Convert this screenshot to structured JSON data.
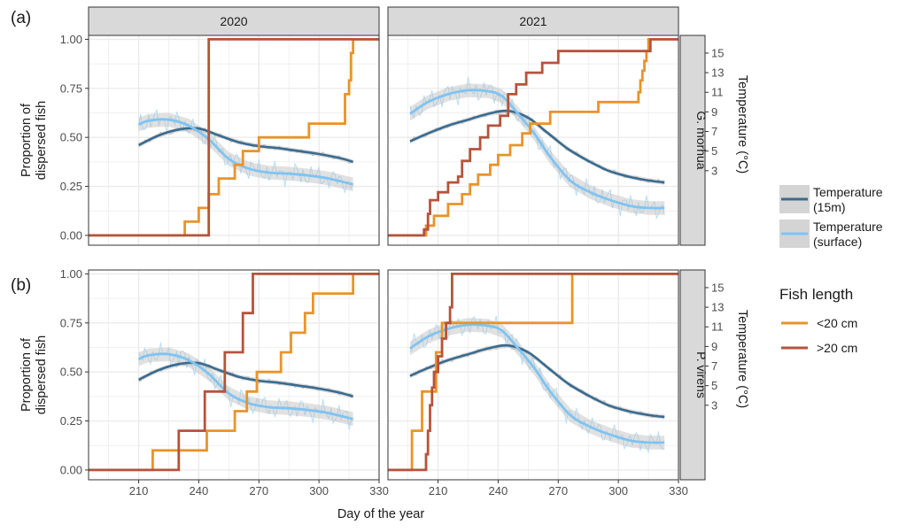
{
  "figure": {
    "panel_letters": [
      "(a)",
      "(b)"
    ],
    "column_strips": [
      "2020",
      "2021"
    ],
    "row_strips": [
      "G. morhua",
      "P. virens"
    ],
    "left_axis_label_line1": "Proportion of",
    "left_axis_label_line2": "dispersed fish",
    "right_axis_label": "Temperature (°C)",
    "x_axis_label": "Day of the year"
  },
  "colors": {
    "lt20": "#E8942A",
    "gt20": "#B5533C",
    "temp15m": "#3A6B8F",
    "tempSurface": "#7EC4F2",
    "tempSurfaceRaw": "#B9E1FA",
    "ribbon": "#BDBDBD",
    "strip": "#D9D9D9",
    "grid": "#EBEBEB"
  },
  "legend": {
    "temperature": [
      {
        "key": "temp15m",
        "line1": "Temperature",
        "line2": "(15m)"
      },
      {
        "key": "tempSurface",
        "line1": "Temperature",
        "line2": "(surface)"
      }
    ],
    "fish_title": "Fish length",
    "fish": [
      {
        "key": "lt20",
        "label": "<20 cm"
      },
      {
        "key": "gt20",
        "label": ">20 cm"
      }
    ]
  },
  "chart_data": {
    "type": "line",
    "x_ticks": [
      210,
      240,
      270,
      300,
      330
    ],
    "y_ticks": [
      0.0,
      0.25,
      0.5,
      0.75,
      1.0
    ],
    "y_tick_labels": [
      "0.00",
      "0.25",
      "0.50",
      "0.75",
      "1.00"
    ],
    "temp_ticks": [
      3,
      5,
      7,
      9,
      11,
      13,
      15
    ],
    "xlim": [
      185,
      330
    ],
    "ylim": [
      -0.05,
      1.02
    ],
    "temp_axis_map": {
      "zero_at": 0.18,
      "per_degree": 0.05
    },
    "panels": [
      {
        "row": 0,
        "col": 0,
        "temp15m": [
          [
            210,
            0.46
          ],
          [
            220,
            0.51
          ],
          [
            230,
            0.54
          ],
          [
            240,
            0.545
          ],
          [
            250,
            0.51
          ],
          [
            260,
            0.475
          ],
          [
            270,
            0.455
          ],
          [
            280,
            0.445
          ],
          [
            290,
            0.43
          ],
          [
            300,
            0.415
          ],
          [
            310,
            0.395
          ],
          [
            317,
            0.375
          ]
        ],
        "tempSurface": [
          [
            210,
            0.565
          ],
          [
            215,
            0.585
          ],
          [
            225,
            0.59
          ],
          [
            235,
            0.56
          ],
          [
            245,
            0.49
          ],
          [
            255,
            0.39
          ],
          [
            265,
            0.34
          ],
          [
            275,
            0.32
          ],
          [
            285,
            0.315
          ],
          [
            295,
            0.305
          ],
          [
            305,
            0.29
          ],
          [
            317,
            0.26
          ]
        ],
        "lt20": [
          [
            185,
            0
          ],
          [
            233,
            0
          ],
          [
            233,
            0.07
          ],
          [
            240,
            0.07
          ],
          [
            240,
            0.14
          ],
          [
            245,
            0.14
          ],
          [
            245,
            0.21
          ],
          [
            250,
            0.21
          ],
          [
            250,
            0.29
          ],
          [
            258,
            0.29
          ],
          [
            258,
            0.36
          ],
          [
            262,
            0.36
          ],
          [
            262,
            0.43
          ],
          [
            270,
            0.43
          ],
          [
            270,
            0.5
          ],
          [
            295,
            0.5
          ],
          [
            295,
            0.57
          ],
          [
            313,
            0.57
          ],
          [
            313,
            0.72
          ],
          [
            315,
            0.72
          ],
          [
            315,
            0.79
          ],
          [
            316,
            0.79
          ],
          [
            316,
            0.93
          ],
          [
            317,
            0.93
          ],
          [
            317,
            1.0
          ],
          [
            330,
            1.0
          ]
        ],
        "gt20": [
          [
            185,
            0
          ],
          [
            245,
            0
          ],
          [
            245,
            1.0
          ],
          [
            330,
            1.0
          ]
        ]
      },
      {
        "row": 0,
        "col": 1,
        "temp15m": [
          [
            196,
            0.48
          ],
          [
            205,
            0.52
          ],
          [
            215,
            0.56
          ],
          [
            225,
            0.59
          ],
          [
            235,
            0.62
          ],
          [
            245,
            0.635
          ],
          [
            255,
            0.6
          ],
          [
            265,
            0.52
          ],
          [
            275,
            0.44
          ],
          [
            285,
            0.38
          ],
          [
            295,
            0.33
          ],
          [
            305,
            0.3
          ],
          [
            315,
            0.28
          ],
          [
            323,
            0.27
          ]
        ],
        "tempSurface": [
          [
            196,
            0.62
          ],
          [
            205,
            0.68
          ],
          [
            215,
            0.72
          ],
          [
            225,
            0.74
          ],
          [
            235,
            0.735
          ],
          [
            242,
            0.71
          ],
          [
            250,
            0.62
          ],
          [
            258,
            0.52
          ],
          [
            266,
            0.4
          ],
          [
            276,
            0.28
          ],
          [
            286,
            0.22
          ],
          [
            296,
            0.18
          ],
          [
            306,
            0.15
          ],
          [
            315,
            0.14
          ],
          [
            323,
            0.14
          ]
        ],
        "lt20": [
          [
            185,
            0
          ],
          [
            204,
            0
          ],
          [
            204,
            0.05
          ],
          [
            208,
            0.05
          ],
          [
            208,
            0.1
          ],
          [
            215,
            0.1
          ],
          [
            215,
            0.16
          ],
          [
            222,
            0.16
          ],
          [
            222,
            0.21
          ],
          [
            226,
            0.21
          ],
          [
            226,
            0.26
          ],
          [
            230,
            0.26
          ],
          [
            230,
            0.31
          ],
          [
            236,
            0.31
          ],
          [
            236,
            0.36
          ],
          [
            240,
            0.36
          ],
          [
            240,
            0.41
          ],
          [
            246,
            0.41
          ],
          [
            246,
            0.46
          ],
          [
            252,
            0.46
          ],
          [
            252,
            0.52
          ],
          [
            256,
            0.52
          ],
          [
            256,
            0.57
          ],
          [
            266,
            0.57
          ],
          [
            266,
            0.63
          ],
          [
            290,
            0.63
          ],
          [
            290,
            0.68
          ],
          [
            310,
            0.68
          ],
          [
            310,
            0.73
          ],
          [
            311,
            0.73
          ],
          [
            311,
            0.79
          ],
          [
            312,
            0.79
          ],
          [
            312,
            0.84
          ],
          [
            313,
            0.84
          ],
          [
            313,
            0.89
          ],
          [
            314,
            0.89
          ],
          [
            314,
            0.94
          ],
          [
            315,
            0.94
          ],
          [
            315,
            1.0
          ],
          [
            330,
            1.0
          ]
        ],
        "gt20": [
          [
            185,
            0
          ],
          [
            203,
            0
          ],
          [
            203,
            0.03
          ],
          [
            205,
            0.03
          ],
          [
            205,
            0.11
          ],
          [
            206,
            0.11
          ],
          [
            206,
            0.18
          ],
          [
            210,
            0.18
          ],
          [
            210,
            0.22
          ],
          [
            215,
            0.22
          ],
          [
            215,
            0.27
          ],
          [
            220,
            0.27
          ],
          [
            220,
            0.3
          ],
          [
            222,
            0.3
          ],
          [
            222,
            0.38
          ],
          [
            226,
            0.38
          ],
          [
            226,
            0.44
          ],
          [
            231,
            0.44
          ],
          [
            231,
            0.5
          ],
          [
            235,
            0.5
          ],
          [
            235,
            0.56
          ],
          [
            241,
            0.56
          ],
          [
            241,
            0.61
          ],
          [
            245,
            0.61
          ],
          [
            245,
            0.72
          ],
          [
            249,
            0.72
          ],
          [
            249,
            0.77
          ],
          [
            254,
            0.77
          ],
          [
            254,
            0.83
          ],
          [
            262,
            0.83
          ],
          [
            262,
            0.88
          ],
          [
            270,
            0.88
          ],
          [
            270,
            0.94
          ],
          [
            316,
            0.94
          ],
          [
            316,
            1.0
          ],
          [
            330,
            1.0
          ]
        ]
      },
      {
        "row": 1,
        "col": 0,
        "temp15m": [
          [
            210,
            0.46
          ],
          [
            220,
            0.51
          ],
          [
            230,
            0.54
          ],
          [
            240,
            0.545
          ],
          [
            250,
            0.51
          ],
          [
            260,
            0.475
          ],
          [
            270,
            0.455
          ],
          [
            280,
            0.445
          ],
          [
            290,
            0.43
          ],
          [
            300,
            0.415
          ],
          [
            310,
            0.395
          ],
          [
            317,
            0.375
          ]
        ],
        "tempSurface": [
          [
            210,
            0.565
          ],
          [
            215,
            0.585
          ],
          [
            225,
            0.59
          ],
          [
            235,
            0.56
          ],
          [
            245,
            0.49
          ],
          [
            255,
            0.39
          ],
          [
            265,
            0.34
          ],
          [
            275,
            0.32
          ],
          [
            285,
            0.315
          ],
          [
            295,
            0.305
          ],
          [
            305,
            0.29
          ],
          [
            317,
            0.26
          ]
        ],
        "lt20": [
          [
            185,
            0
          ],
          [
            217,
            0
          ],
          [
            217,
            0.1
          ],
          [
            244,
            0.1
          ],
          [
            244,
            0.2
          ],
          [
            258,
            0.2
          ],
          [
            258,
            0.3
          ],
          [
            264,
            0.3
          ],
          [
            264,
            0.4
          ],
          [
            269,
            0.4
          ],
          [
            269,
            0.5
          ],
          [
            281,
            0.5
          ],
          [
            281,
            0.6
          ],
          [
            286,
            0.6
          ],
          [
            286,
            0.7
          ],
          [
            293,
            0.7
          ],
          [
            293,
            0.8
          ],
          [
            297,
            0.8
          ],
          [
            297,
            0.9
          ],
          [
            317,
            0.9
          ],
          [
            317,
            1.0
          ],
          [
            330,
            1.0
          ]
        ],
        "gt20": [
          [
            185,
            0
          ],
          [
            230,
            0
          ],
          [
            230,
            0.2
          ],
          [
            243,
            0.2
          ],
          [
            243,
            0.4
          ],
          [
            253,
            0.4
          ],
          [
            253,
            0.6
          ],
          [
            262,
            0.6
          ],
          [
            262,
            0.8
          ],
          [
            267,
            0.8
          ],
          [
            267,
            1.0
          ],
          [
            330,
            1.0
          ]
        ]
      },
      {
        "row": 1,
        "col": 1,
        "temp15m": [
          [
            196,
            0.48
          ],
          [
            205,
            0.52
          ],
          [
            215,
            0.56
          ],
          [
            225,
            0.59
          ],
          [
            235,
            0.62
          ],
          [
            245,
            0.635
          ],
          [
            255,
            0.6
          ],
          [
            265,
            0.52
          ],
          [
            275,
            0.44
          ],
          [
            285,
            0.38
          ],
          [
            295,
            0.33
          ],
          [
            305,
            0.3
          ],
          [
            315,
            0.28
          ],
          [
            323,
            0.27
          ]
        ],
        "tempSurface": [
          [
            196,
            0.62
          ],
          [
            205,
            0.68
          ],
          [
            215,
            0.72
          ],
          [
            225,
            0.74
          ],
          [
            235,
            0.735
          ],
          [
            242,
            0.71
          ],
          [
            250,
            0.62
          ],
          [
            258,
            0.52
          ],
          [
            266,
            0.4
          ],
          [
            276,
            0.28
          ],
          [
            286,
            0.22
          ],
          [
            296,
            0.18
          ],
          [
            306,
            0.15
          ],
          [
            315,
            0.14
          ],
          [
            323,
            0.14
          ]
        ],
        "lt20": [
          [
            185,
            0
          ],
          [
            197,
            0
          ],
          [
            197,
            0.2
          ],
          [
            202,
            0.2
          ],
          [
            202,
            0.4
          ],
          [
            209,
            0.4
          ],
          [
            209,
            0.6
          ],
          [
            212,
            0.6
          ],
          [
            212,
            0.75
          ],
          [
            277,
            0.75
          ],
          [
            277,
            1.0
          ],
          [
            330,
            1.0
          ]
        ],
        "gt20": [
          [
            185,
            0
          ],
          [
            204,
            0
          ],
          [
            204,
            0.08
          ],
          [
            205,
            0.08
          ],
          [
            205,
            0.2
          ],
          [
            206,
            0.2
          ],
          [
            206,
            0.33
          ],
          [
            207,
            0.33
          ],
          [
            207,
            0.42
          ],
          [
            208,
            0.42
          ],
          [
            208,
            0.5
          ],
          [
            210,
            0.5
          ],
          [
            210,
            0.58
          ],
          [
            212,
            0.58
          ],
          [
            212,
            0.67
          ],
          [
            214,
            0.67
          ],
          [
            214,
            0.75
          ],
          [
            216,
            0.75
          ],
          [
            216,
            0.83
          ],
          [
            217,
            0.83
          ],
          [
            217,
            1.0
          ],
          [
            330,
            1.0
          ]
        ]
      }
    ]
  }
}
